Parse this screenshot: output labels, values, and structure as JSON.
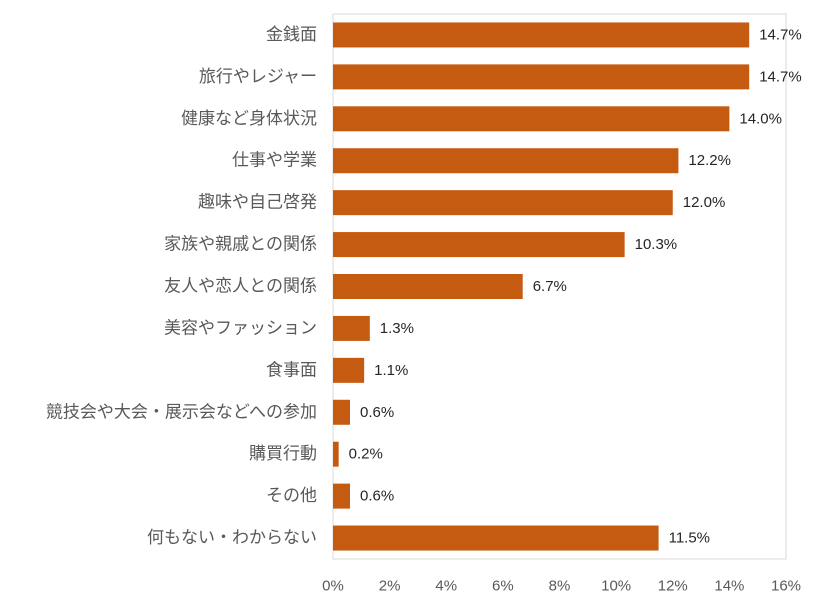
{
  "chart_data": {
    "type": "bar",
    "orientation": "horizontal",
    "categories": [
      "金銭面",
      "旅行やレジャー",
      "健康など身体状況",
      "仕事や学業",
      "趣味や自己啓発",
      "家族や親戚との関係",
      "友人や恋人との関係",
      "美容やファッション",
      "食事面",
      "競技会や大会・展示会などへの参加",
      "購買行動",
      "その他",
      "何もない・わからない"
    ],
    "values": [
      14.7,
      14.7,
      14.0,
      12.2,
      12.0,
      10.3,
      6.7,
      1.3,
      1.1,
      0.6,
      0.2,
      0.6,
      11.5
    ],
    "value_labels": [
      "14.7%",
      "14.7%",
      "14.0%",
      "12.2%",
      "12.0%",
      "10.3%",
      "6.7%",
      "1.3%",
      "1.1%",
      "0.6%",
      "0.2%",
      "0.6%",
      "11.5%"
    ],
    "xlim": [
      0,
      16
    ],
    "x_ticks": [
      0,
      2,
      4,
      6,
      8,
      10,
      12,
      14,
      16
    ],
    "x_tick_labels": [
      "0%",
      "2%",
      "4%",
      "6%",
      "8%",
      "10%",
      "12%",
      "14%",
      "16%"
    ],
    "grid": false,
    "bar_color": "#C55A11",
    "axis_color": "#D9D9D9",
    "title": "",
    "xlabel": "",
    "ylabel": ""
  }
}
